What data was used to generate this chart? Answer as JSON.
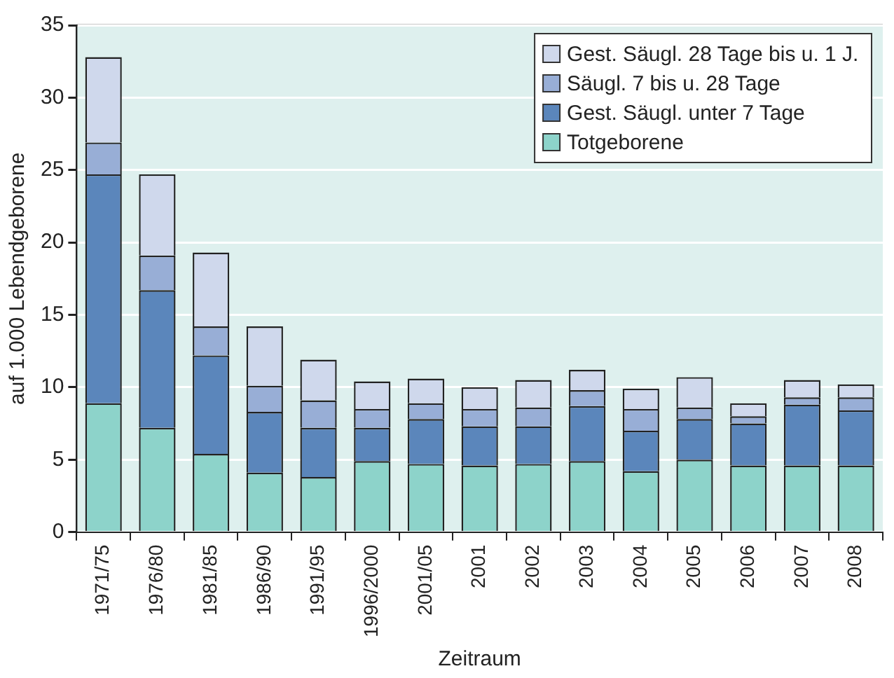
{
  "chart_data": {
    "type": "bar",
    "stacked": true,
    "xlabel": "Zeitraum",
    "ylabel": "auf 1.000 Lebendgeborene",
    "categories": [
      "1971/75",
      "1976/80",
      "1981/85",
      "1986/90",
      "1991/95",
      "1996/2000",
      "2001/05",
      "2001",
      "2002",
      "2003",
      "2004",
      "2005",
      "2006",
      "2007",
      "2008"
    ],
    "series": [
      {
        "name": "Totgeborene",
        "color": "#8dd3ca",
        "values": [
          8.9,
          7.2,
          5.4,
          4.1,
          3.8,
          4.9,
          4.7,
          4.6,
          4.7,
          4.9,
          4.2,
          5.0,
          4.6,
          4.6,
          4.6
        ]
      },
      {
        "name": "Gest. Säugl. unter 7 Tage",
        "color": "#5b86bb",
        "values": [
          15.8,
          9.5,
          6.8,
          4.2,
          3.4,
          2.3,
          3.1,
          2.7,
          2.6,
          3.8,
          2.8,
          2.8,
          2.9,
          4.2,
          3.8
        ]
      },
      {
        "name": "Säugl. 7 bis u. 28 Tage",
        "color": "#98aed6",
        "values": [
          2.2,
          2.4,
          2.0,
          1.8,
          1.9,
          1.3,
          1.1,
          1.2,
          1.3,
          1.1,
          1.5,
          0.8,
          0.5,
          0.5,
          0.9
        ]
      },
      {
        "name": "Gest. Säugl. 28 Tage bis u. 1 J.",
        "color": "#cfd8ec",
        "values": [
          5.9,
          5.6,
          5.1,
          4.1,
          2.8,
          1.9,
          1.7,
          1.5,
          1.9,
          1.4,
          1.4,
          2.1,
          0.9,
          1.2,
          0.9
        ]
      }
    ],
    "ylim": [
      0,
      35
    ],
    "yticks": [
      0,
      5,
      10,
      15,
      20,
      25,
      30,
      35
    ],
    "grid": "y",
    "legend": "top right"
  }
}
